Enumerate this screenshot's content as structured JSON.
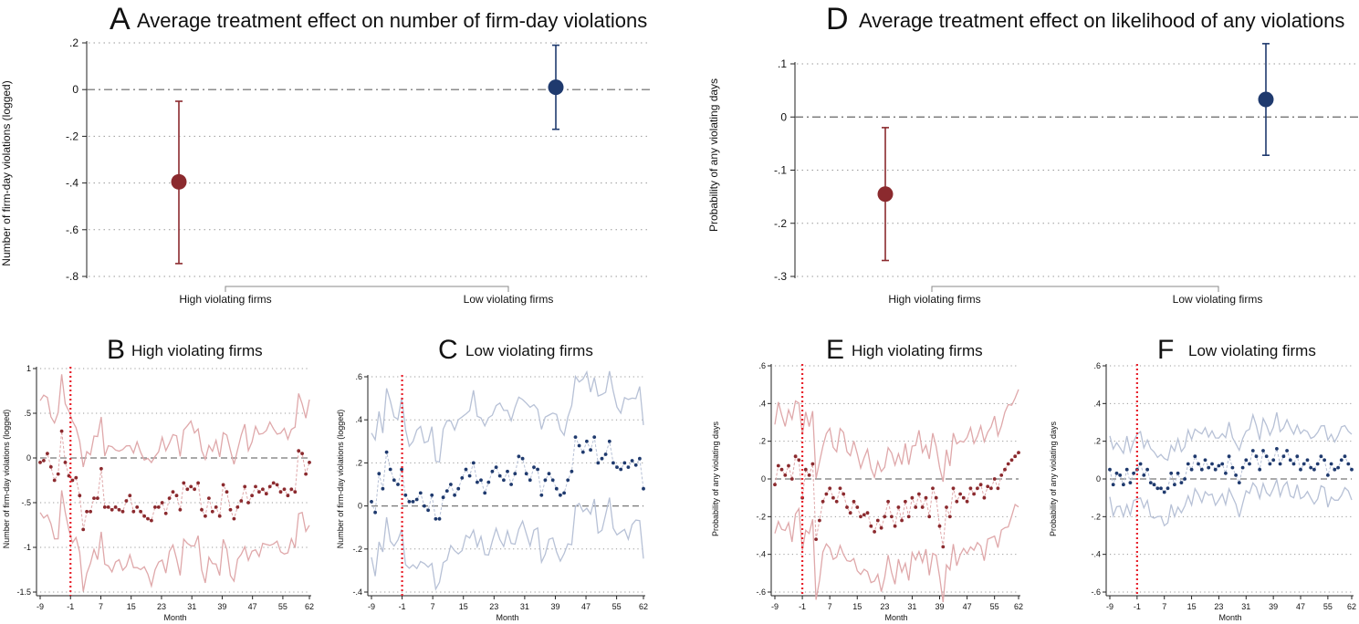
{
  "colors": {
    "high": "#8b2a2e",
    "low": "#1f3a6e",
    "high_ci": "#dfa8aa",
    "low_ci": "#b7c1d6",
    "event_line": "#e8202a"
  },
  "chart_data": [
    {
      "id": "A",
      "type": "scatter",
      "letter": "A",
      "title": "Average treatment effect on number of firm-day violations",
      "ylabel": "Number of firm-day violations (logged)",
      "ylim": [
        -0.8,
        0.2
      ],
      "yticks": [
        0.2,
        0,
        -0.2,
        -0.4,
        -0.6,
        -0.8
      ],
      "yticklabels": [
        ".2",
        "0",
        "-.2",
        "-.4",
        "-.6",
        "-.8"
      ],
      "categories": [
        "High violating firms",
        "Low violating firms"
      ],
      "points": [
        {
          "label": "High violating firms",
          "estimate": -0.395,
          "ci_low": -0.745,
          "ci_high": -0.05
        },
        {
          "label": "Low violating firms",
          "estimate": 0.01,
          "ci_low": -0.17,
          "ci_high": 0.19
        }
      ]
    },
    {
      "id": "D",
      "type": "scatter",
      "letter": "D",
      "title": "Average treatment effect on likelihood of any violations",
      "ylabel": "Probability of any violating days",
      "ylim": [
        -0.3,
        0.1
      ],
      "yticks": [
        0.1,
        0,
        -0.1,
        -0.2,
        -0.3
      ],
      "yticklabels": [
        ".1",
        "0",
        "-.1",
        "-.2",
        "-.3"
      ],
      "categories": [
        "High violating firms",
        "Low violating firms"
      ],
      "points": [
        {
          "label": "High violating firms",
          "estimate": -0.145,
          "ci_low": -0.27,
          "ci_high": -0.02
        },
        {
          "label": "Low violating firms",
          "estimate": 0.033,
          "ci_low": -0.072,
          "ci_high": 0.138
        }
      ]
    },
    {
      "id": "B",
      "type": "line",
      "letter": "B",
      "title": "High violating firms",
      "ylabel": "Number of firm-day violations (logged)",
      "xlabel": "Month",
      "xlim": [
        -9,
        62
      ],
      "ylim": [
        -1.5,
        1
      ],
      "yticks": [
        1,
        0.5,
        0,
        -0.5,
        -1,
        -1.5
      ],
      "yticklabels": [
        "1",
        ".5",
        "0",
        "-.5",
        "-1",
        "-1.5"
      ],
      "xticks": [
        -9,
        -1,
        7,
        15,
        23,
        31,
        39,
        47,
        55,
        62
      ],
      "event_month": -1,
      "series_color": "high",
      "estimates": [
        -0.05,
        -0.03,
        0.05,
        -0.1,
        -0.25,
        -0.18,
        0.3,
        -0.05,
        -0.2,
        -0.25,
        -0.22,
        -0.42,
        -0.8,
        -0.6,
        -0.6,
        -0.45,
        -0.45,
        -0.12,
        -0.55,
        -0.55,
        -0.58,
        -0.55,
        -0.58,
        -0.6,
        -0.48,
        -0.42,
        -0.6,
        -0.55,
        -0.6,
        -0.65,
        -0.68,
        -0.7,
        -0.55,
        -0.55,
        -0.5,
        -0.62,
        -0.45,
        -0.38,
        -0.42,
        -0.58,
        -0.28,
        -0.35,
        -0.32,
        -0.35,
        -0.28,
        -0.58,
        -0.65,
        -0.45,
        -0.6,
        -0.55,
        -0.65,
        -0.3,
        -0.38,
        -0.58,
        -0.68,
        -0.55,
        -0.48,
        -0.32,
        -0.5,
        -0.42,
        -0.32,
        -0.38,
        -0.35,
        -0.4,
        -0.32,
        -0.28,
        -0.3,
        -0.38,
        -0.35,
        -0.42,
        -0.35,
        -0.38,
        0.08,
        0.05,
        -0.18,
        -0.05
      ]
    },
    {
      "id": "C",
      "type": "line",
      "letter": "C",
      "title": "Low violating firms",
      "ylabel": "Number of firm-day violations (logged)",
      "xlabel": "Month",
      "xlim": [
        -9,
        62
      ],
      "ylim": [
        -0.4,
        0.6
      ],
      "yticks": [
        0.6,
        0.4,
        0.2,
        0,
        -0.2,
        -0.4
      ],
      "yticklabels": [
        ".6",
        ".4",
        ".2",
        "0",
        "-.2",
        "-.4"
      ],
      "xticks": [
        -9,
        -1,
        7,
        15,
        23,
        31,
        39,
        47,
        55,
        62
      ],
      "event_month": -1,
      "series_color": "low",
      "estimates": [
        0.02,
        -0.03,
        0.15,
        0.08,
        0.25,
        0.17,
        0.12,
        0.1,
        0.17,
        0.05,
        0.02,
        0.02,
        0.03,
        0.06,
        0.0,
        -0.02,
        0.05,
        -0.06,
        -0.06,
        0.04,
        0.07,
        0.1,
        0.05,
        0.08,
        0.13,
        0.17,
        0.14,
        0.2,
        0.11,
        0.12,
        0.06,
        0.11,
        0.16,
        0.18,
        0.14,
        0.12,
        0.16,
        0.1,
        0.15,
        0.23,
        0.22,
        0.15,
        0.12,
        0.18,
        0.17,
        0.05,
        0.12,
        0.15,
        0.12,
        0.08,
        0.05,
        0.06,
        0.12,
        0.16,
        0.32,
        0.28,
        0.25,
        0.3,
        0.26,
        0.32,
        0.2,
        0.22,
        0.24,
        0.3,
        0.2,
        0.18,
        0.17,
        0.2,
        0.18,
        0.21,
        0.19,
        0.22,
        0.08
      ]
    },
    {
      "id": "E",
      "type": "line",
      "letter": "E",
      "title": "High violating firms",
      "ylabel": "Probability of any violating days",
      "xlabel": "Month",
      "xlim": [
        -9,
        62
      ],
      "ylim": [
        -0.6,
        0.6
      ],
      "yticks": [
        0.6,
        0.4,
        0.2,
        0,
        -0.2,
        -0.4,
        -0.6
      ],
      "yticklabels": [
        ".6",
        ".4",
        ".2",
        "0",
        "-.2",
        "-.4",
        "-.6"
      ],
      "xticks": [
        -9,
        -1,
        7,
        15,
        23,
        31,
        39,
        47,
        55,
        62
      ],
      "event_month": -1,
      "series_color": "high",
      "estimates": [
        -0.03,
        0.07,
        0.05,
        0.02,
        0.07,
        0.0,
        0.12,
        0.1,
        -0.1,
        0.05,
        0.02,
        0.08,
        -0.32,
        -0.22,
        -0.12,
        -0.08,
        -0.05,
        -0.1,
        -0.12,
        -0.05,
        -0.08,
        -0.15,
        -0.18,
        -0.12,
        -0.15,
        -0.2,
        -0.19,
        -0.18,
        -0.25,
        -0.28,
        -0.22,
        -0.26,
        -0.2,
        -0.12,
        -0.2,
        -0.25,
        -0.15,
        -0.22,
        -0.12,
        -0.2,
        -0.1,
        -0.15,
        -0.08,
        -0.15,
        -0.1,
        -0.2,
        -0.05,
        -0.1,
        -0.25,
        -0.36,
        -0.15,
        -0.2,
        -0.05,
        -0.12,
        -0.08,
        -0.1,
        -0.12,
        -0.05,
        -0.08,
        -0.05,
        -0.03,
        -0.1,
        -0.04,
        -0.05,
        0.0,
        -0.05,
        0.02,
        0.05,
        0.08,
        0.1,
        0.12,
        0.14
      ]
    },
    {
      "id": "F",
      "type": "line",
      "letter": "F",
      "title": "Low violating firms",
      "ylabel": "Probability of any violating days",
      "xlabel": "Month",
      "xlim": [
        -9,
        62
      ],
      "ylim": [
        -0.6,
        0.6
      ],
      "yticks": [
        0.6,
        0.4,
        0.2,
        0,
        -0.2,
        -0.4,
        -0.6
      ],
      "yticklabels": [
        ".6",
        ".4",
        ".2",
        "0",
        "-.2",
        "-.4",
        "-.6"
      ],
      "xticks": [
        -9,
        -1,
        7,
        15,
        23,
        31,
        39,
        47,
        55,
        62
      ],
      "event_month": -1,
      "series_color": "low",
      "estimates": [
        0.05,
        -0.03,
        0.03,
        0.02,
        -0.03,
        0.05,
        -0.02,
        0.03,
        0.05,
        0.08,
        0.02,
        0.05,
        -0.02,
        -0.03,
        -0.05,
        -0.05,
        -0.07,
        -0.05,
        0.03,
        -0.03,
        0.03,
        -0.02,
        0.0,
        0.08,
        0.05,
        0.12,
        0.08,
        0.05,
        0.1,
        0.06,
        0.08,
        0.05,
        0.07,
        0.08,
        0.03,
        0.12,
        0.06,
        0.02,
        -0.02,
        0.06,
        0.1,
        0.08,
        0.15,
        0.12,
        0.05,
        0.15,
        0.12,
        0.08,
        0.1,
        0.16,
        0.08,
        0.12,
        0.15,
        0.1,
        0.08,
        0.12,
        0.05,
        0.08,
        0.1,
        0.06,
        0.05,
        0.08,
        0.12,
        0.1,
        0.02,
        0.08,
        0.05,
        0.06,
        0.1,
        0.12,
        0.08,
        0.05
      ]
    }
  ]
}
